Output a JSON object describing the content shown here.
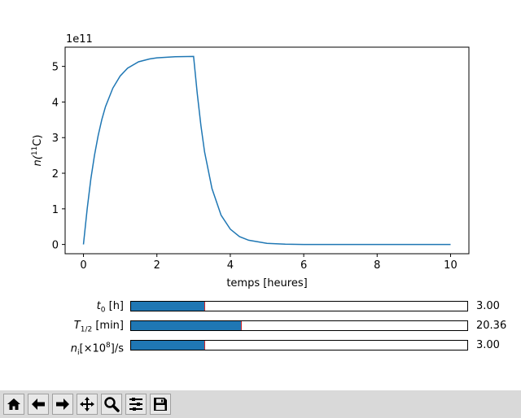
{
  "chart_data": {
    "type": "line",
    "series": [
      {
        "color": "#1f77b4",
        "x": [
          0,
          0.1,
          0.2,
          0.3,
          0.4,
          0.5,
          0.6,
          0.8,
          1.0,
          1.2,
          1.5,
          1.8,
          2.0,
          2.5,
          3.0,
          3.1,
          3.2,
          3.3,
          3.5,
          3.75,
          4.0,
          4.25,
          4.5,
          5.0,
          5.5,
          6.0,
          7.0,
          8.0,
          10.0
        ],
        "y": [
          0,
          1.0,
          1.84,
          2.51,
          3.06,
          3.51,
          3.87,
          4.39,
          4.73,
          4.95,
          5.13,
          5.21,
          5.24,
          5.27,
          5.28,
          4.24,
          3.34,
          2.6,
          1.57,
          0.82,
          0.43,
          0.22,
          0.12,
          0.03,
          0.01,
          0.0,
          0.0,
          0.0,
          0.0
        ]
      }
    ],
    "xlabel": "temps [heures]",
    "ylabel_main": "n(",
    "ylabel_sup": "11",
    "ylabel_tail": "C)",
    "offset_text": "1e11",
    "xlim": [
      -0.5,
      10.5
    ],
    "ylim": [
      -0.26,
      5.54
    ],
    "xticks": [
      0,
      2,
      4,
      6,
      8,
      10
    ],
    "yticks": [
      0,
      1,
      2,
      3,
      4,
      5
    ],
    "grid": false
  },
  "sliders": [
    {
      "label": "t",
      "sub": "0",
      "sup": "",
      "tail": " [h]",
      "value_text": "3.00",
      "value": 3.0,
      "min": 0,
      "max": 13.7,
      "fill_color": "#1f77b4",
      "handle_color": "#d62728"
    },
    {
      "label": "T",
      "sub": "1/2",
      "sup": "",
      "tail": " [min]",
      "value_text": "20.36",
      "value": 20.36,
      "min": 0,
      "max": 62.2,
      "fill_color": "#1f77b4",
      "handle_color": "#d62728"
    },
    {
      "label": "n",
      "sub": "i",
      "sup": "8",
      "tail": "]/s",
      "pre_sup": "[×10",
      "value_text": "3.00",
      "value": 3.0,
      "min": 0,
      "max": 13.7,
      "fill_color": "#1f77b4",
      "handle_color": "#d62728"
    }
  ],
  "toolbar": {
    "buttons": [
      {
        "name": "home-icon"
      },
      {
        "name": "back-arrow-icon"
      },
      {
        "name": "forward-arrow-icon"
      },
      {
        "name": "pan-move-icon"
      },
      {
        "name": "zoom-magnifier-icon"
      },
      {
        "name": "configure-subplots-icon"
      },
      {
        "name": "save-icon"
      }
    ]
  }
}
